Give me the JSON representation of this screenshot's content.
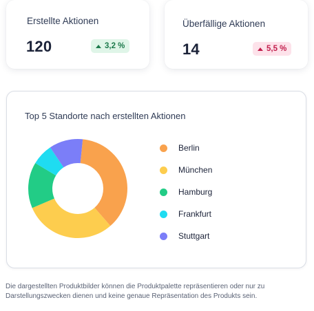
{
  "kpis": {
    "created": {
      "title": "Erstellte Aktionen",
      "value": "120",
      "delta": "3,2 %",
      "trend": "up",
      "badge_bg": "#dff5e8",
      "badge_fg": "#1d7a4c"
    },
    "overdue": {
      "title": "Überfällige Aktionen",
      "value": "14",
      "delta": "5,5 %",
      "trend": "up",
      "badge_bg": "#fde2ea",
      "badge_fg": "#c21f4d"
    }
  },
  "chart": {
    "title": "Top 5 Standorte nach erstellten Aktionen"
  },
  "chart_data": {
    "type": "pie",
    "categories": [
      "Berlin",
      "München",
      "Hamburg",
      "Frankfurt",
      "Stuttgart"
    ],
    "values": [
      37,
      30,
      15,
      7,
      11
    ],
    "colors": [
      "#f9a24d",
      "#fdcd4e",
      "#22cc86",
      "#1fdcf1",
      "#7b7ef8"
    ],
    "legend": "right"
  },
  "disclaimer": "Die dargestellten Produktbilder können die Produktpalette repräsentieren oder nur zu Darstellungszwecken dienen und keine genaue Repräsentation des Produkts sein."
}
